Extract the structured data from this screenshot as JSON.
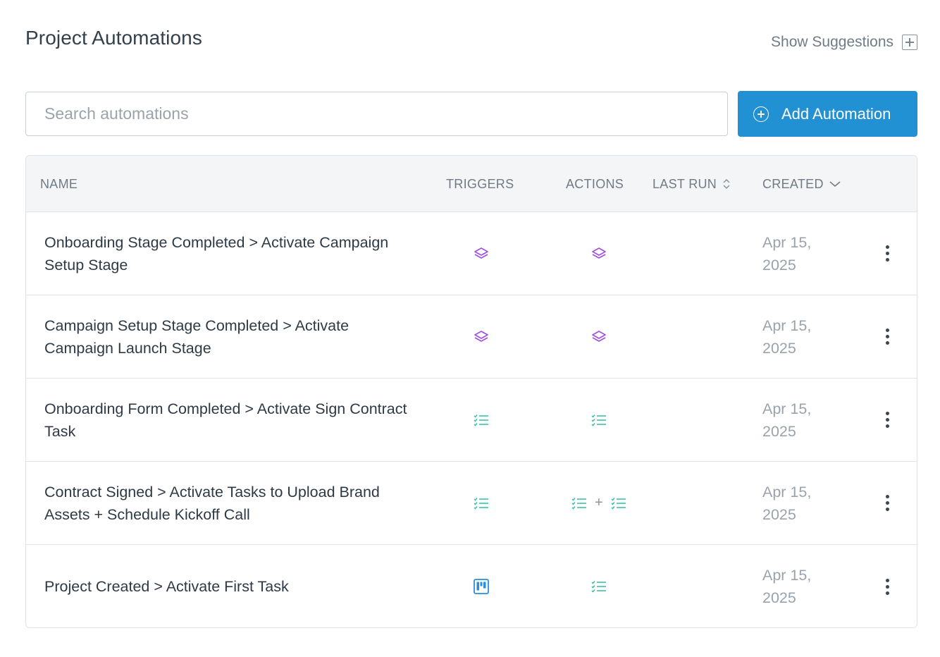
{
  "header": {
    "title": "Project Automations",
    "show_suggestions_label": "Show Suggestions"
  },
  "search": {
    "placeholder": "Search automations",
    "value": ""
  },
  "add_button": {
    "label": "Add Automation"
  },
  "colors": {
    "accent": "#2291d4",
    "stage_icon": "#a24fe0",
    "task_icon": "#2cbfa4",
    "project_icon": "#2a8fd6"
  },
  "table": {
    "columns": {
      "name": "NAME",
      "triggers": "TRIGGERS",
      "actions": "ACTIONS",
      "last_run": "LAST RUN",
      "created": "CREATED"
    },
    "rows": [
      {
        "name": "Onboarding Stage Completed > Activate Campaign Setup Stage",
        "trigger_icons": [
          "stage-icon"
        ],
        "action_icons": [
          "stage-icon"
        ],
        "last_run": "",
        "created": "Apr 15, 2025"
      },
      {
        "name": "Campaign Setup Stage Completed > Activate Campaign Launch Stage",
        "trigger_icons": [
          "stage-icon"
        ],
        "action_icons": [
          "stage-icon"
        ],
        "last_run": "",
        "created": "Apr 15, 2025"
      },
      {
        "name": "Onboarding Form Completed > Activate Sign Contract Task",
        "trigger_icons": [
          "task-list-icon"
        ],
        "action_icons": [
          "task-list-icon"
        ],
        "last_run": "",
        "created": "Apr 15, 2025"
      },
      {
        "name": "Contract Signed > Activate Tasks to Upload Brand Assets + Schedule Kickoff Call",
        "trigger_icons": [
          "task-list-icon"
        ],
        "action_icons": [
          "task-list-icon",
          "task-list-icon"
        ],
        "action_separator": "+",
        "last_run": "",
        "created": "Apr 15, 2025"
      },
      {
        "name": "Project Created > Activate First Task",
        "trigger_icons": [
          "project-board-icon"
        ],
        "action_icons": [
          "task-list-icon"
        ],
        "last_run": "",
        "created": "Apr 15, 2025"
      }
    ]
  }
}
